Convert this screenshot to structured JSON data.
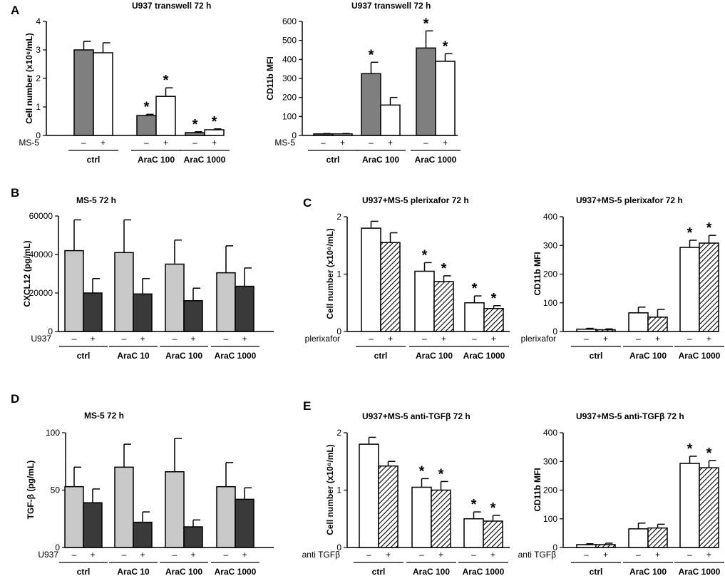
{
  "colors": {
    "dark": "#7f7f7f",
    "white": "#ffffff",
    "light": "#c8c8c8",
    "black": "#3a3a3a",
    "hatch": "#000000"
  },
  "chart_data": [
    {
      "id": "A1",
      "panel_label": "A",
      "type": "bar",
      "title": "U937 transwell 72 h",
      "ylabel": "Cell number (x10⁶/mL)",
      "ylim": [
        0,
        4
      ],
      "yticks": [
        "0",
        "1",
        "2",
        "3",
        "4"
      ],
      "factor_label": "MS-5",
      "factor_levels": [
        "–",
        "+"
      ],
      "categories": [
        "ctrl",
        "AraC 100",
        "AraC 1000"
      ],
      "series": [
        {
          "name": "– MS-5",
          "style": "dark",
          "values": [
            3.0,
            0.7,
            0.1
          ],
          "errors": [
            0.3,
            0.04,
            0.03
          ],
          "sig": [
            "",
            "*",
            "*"
          ]
        },
        {
          "name": "+ MS-5",
          "style": "white",
          "values": [
            2.9,
            1.37,
            0.2
          ],
          "errors": [
            0.35,
            0.3,
            0.03
          ],
          "sig": [
            "",
            "*",
            "*"
          ]
        }
      ]
    },
    {
      "id": "A2",
      "panel_label": "",
      "type": "bar",
      "title": "U937 transwell 72 h",
      "ylabel": "CD11b MFI",
      "ylim": [
        0,
        600
      ],
      "yticks": [
        "0",
        "100",
        "200",
        "300",
        "400",
        "500",
        "600"
      ],
      "factor_label": "MS-5",
      "factor_levels": [
        "–",
        "+"
      ],
      "categories": [
        "ctrl",
        "AraC 100",
        "AraC 1000"
      ],
      "series": [
        {
          "name": "– MS-5",
          "style": "dark",
          "values": [
            8,
            325,
            460
          ],
          "errors": [
            2,
            60,
            90
          ],
          "sig": [
            "",
            "*",
            "*"
          ]
        },
        {
          "name": "+ MS-5",
          "style": "white",
          "values": [
            8,
            160,
            390
          ],
          "errors": [
            2,
            40,
            40
          ],
          "sig": [
            "",
            "",
            "*"
          ]
        }
      ]
    },
    {
      "id": "B",
      "panel_label": "B",
      "type": "bar",
      "title": "MS-5 72 h",
      "ylabel": "CXCL12 (pg/mL)",
      "ylim": [
        0,
        60000
      ],
      "yticks": [
        "0",
        "20000",
        "40000",
        "60000"
      ],
      "factor_label": "U937",
      "factor_levels": [
        "–",
        "+"
      ],
      "categories": [
        "ctrl",
        "AraC 10",
        "AraC 100",
        "AraC 1000"
      ],
      "series": [
        {
          "name": "– U937",
          "style": "light",
          "values": [
            42000,
            41000,
            35000,
            30500
          ],
          "errors": [
            16000,
            17000,
            12500,
            14000
          ],
          "sig": [
            "",
            "",
            "",
            ""
          ]
        },
        {
          "name": "+ U937",
          "style": "black",
          "values": [
            20000,
            19500,
            16000,
            23500
          ],
          "errors": [
            7500,
            8000,
            6500,
            9500
          ],
          "sig": [
            "",
            "",
            "",
            ""
          ]
        }
      ]
    },
    {
      "id": "C1",
      "panel_label": "C",
      "type": "bar",
      "title": "U937+MS-5 plerixafor 72 h",
      "ylabel": "Cell number (x10⁶/mL)",
      "ylim": [
        0,
        2
      ],
      "yticks": [
        "0",
        "1",
        "2"
      ],
      "factor_label": "plerixafor",
      "factor_levels": [
        "–",
        "+"
      ],
      "categories": [
        "ctrl",
        "AraC 100",
        "AraC 1000"
      ],
      "series": [
        {
          "name": "– plerixafor",
          "style": "white",
          "values": [
            1.8,
            1.05,
            0.5
          ],
          "errors": [
            0.12,
            0.15,
            0.12
          ],
          "sig": [
            "",
            "*",
            "*"
          ]
        },
        {
          "name": "+ plerixafor",
          "style": "hatch",
          "values": [
            1.55,
            0.87,
            0.4
          ],
          "errors": [
            0.17,
            0.1,
            0.05
          ],
          "sig": [
            "",
            "*",
            "*"
          ]
        }
      ]
    },
    {
      "id": "C2",
      "panel_label": "",
      "type": "bar",
      "title": "U937+MS-5 plerixafor 72 h",
      "ylabel": "CD11b MFI",
      "ylim": [
        0,
        400
      ],
      "yticks": [
        "0",
        "100",
        "200",
        "300",
        "400"
      ],
      "factor_label": "plerixafor",
      "factor_levels": [
        "–",
        "+"
      ],
      "categories": [
        "ctrl",
        "AraC 100",
        "AraC 1000"
      ],
      "series": [
        {
          "name": "– plerixafor",
          "style": "white",
          "values": [
            8,
            65,
            293
          ],
          "errors": [
            3,
            20,
            25
          ],
          "sig": [
            "",
            "",
            "*"
          ]
        },
        {
          "name": "+ plerixafor",
          "style": "hatch",
          "values": [
            6,
            50,
            308
          ],
          "errors": [
            3,
            27,
            27
          ],
          "sig": [
            "",
            "",
            "*"
          ]
        }
      ]
    },
    {
      "id": "D",
      "panel_label": "D",
      "type": "bar",
      "title": "MS-5 72 h",
      "ylabel": "TGF-β (pg/mL)",
      "ylim": [
        0,
        100
      ],
      "yticks": [
        "0",
        "50",
        "100"
      ],
      "factor_label": "U937",
      "factor_levels": [
        "–",
        "+"
      ],
      "categories": [
        "ctrl",
        "AraC 10",
        "AraC 100",
        "AraC 1000"
      ],
      "series": [
        {
          "name": "– U937",
          "style": "light",
          "values": [
            53,
            70,
            66,
            53
          ],
          "errors": [
            17,
            20,
            29,
            21
          ],
          "sig": [
            "",
            "",
            "",
            ""
          ]
        },
        {
          "name": "+ U937",
          "style": "black",
          "values": [
            39,
            22,
            18,
            42
          ],
          "errors": [
            12,
            9,
            6,
            10
          ],
          "sig": [
            "",
            "",
            "",
            ""
          ]
        }
      ]
    },
    {
      "id": "E1",
      "panel_label": "E",
      "type": "bar",
      "title": "U937+MS-5 anti-TGFβ 72 h",
      "ylabel": "Cell number (x10⁶/mL)",
      "ylim": [
        0,
        2
      ],
      "yticks": [
        "0",
        "1",
        "2"
      ],
      "factor_label": "anti TGFβ",
      "factor_levels": [
        "–",
        "+"
      ],
      "categories": [
        "ctrl",
        "AraC 100",
        "AraC 1000"
      ],
      "series": [
        {
          "name": "– anti TGFβ",
          "style": "white",
          "values": [
            1.8,
            1.05,
            0.5
          ],
          "errors": [
            0.12,
            0.15,
            0.12
          ],
          "sig": [
            "",
            "*",
            "*"
          ]
        },
        {
          "name": "+ anti TGFβ",
          "style": "hatch",
          "values": [
            1.42,
            1.0,
            0.46
          ],
          "errors": [
            0.08,
            0.15,
            0.1
          ],
          "sig": [
            "",
            "*",
            "*"
          ]
        }
      ]
    },
    {
      "id": "E2",
      "panel_label": "",
      "type": "bar",
      "title": "U937+MS-5 anti-TGFβ 72 h",
      "ylabel": "CD11b MFI",
      "ylim": [
        0,
        400
      ],
      "yticks": [
        "0",
        "100",
        "200",
        "300",
        "400"
      ],
      "factor_label": "anti TGFβ",
      "factor_levels": [
        "–",
        "+"
      ],
      "categories": [
        "ctrl",
        "AraC 100",
        "AraC 1000"
      ],
      "series": [
        {
          "name": "– anti TGFβ",
          "style": "white",
          "values": [
            10,
            65,
            293
          ],
          "errors": [
            3,
            20,
            25
          ],
          "sig": [
            "",
            "",
            "*"
          ]
        },
        {
          "name": "+ anti TGFβ",
          "style": "hatch",
          "values": [
            10,
            68,
            278
          ],
          "errors": [
            5,
            13,
            25
          ],
          "sig": [
            "",
            "",
            "*"
          ]
        }
      ]
    }
  ]
}
